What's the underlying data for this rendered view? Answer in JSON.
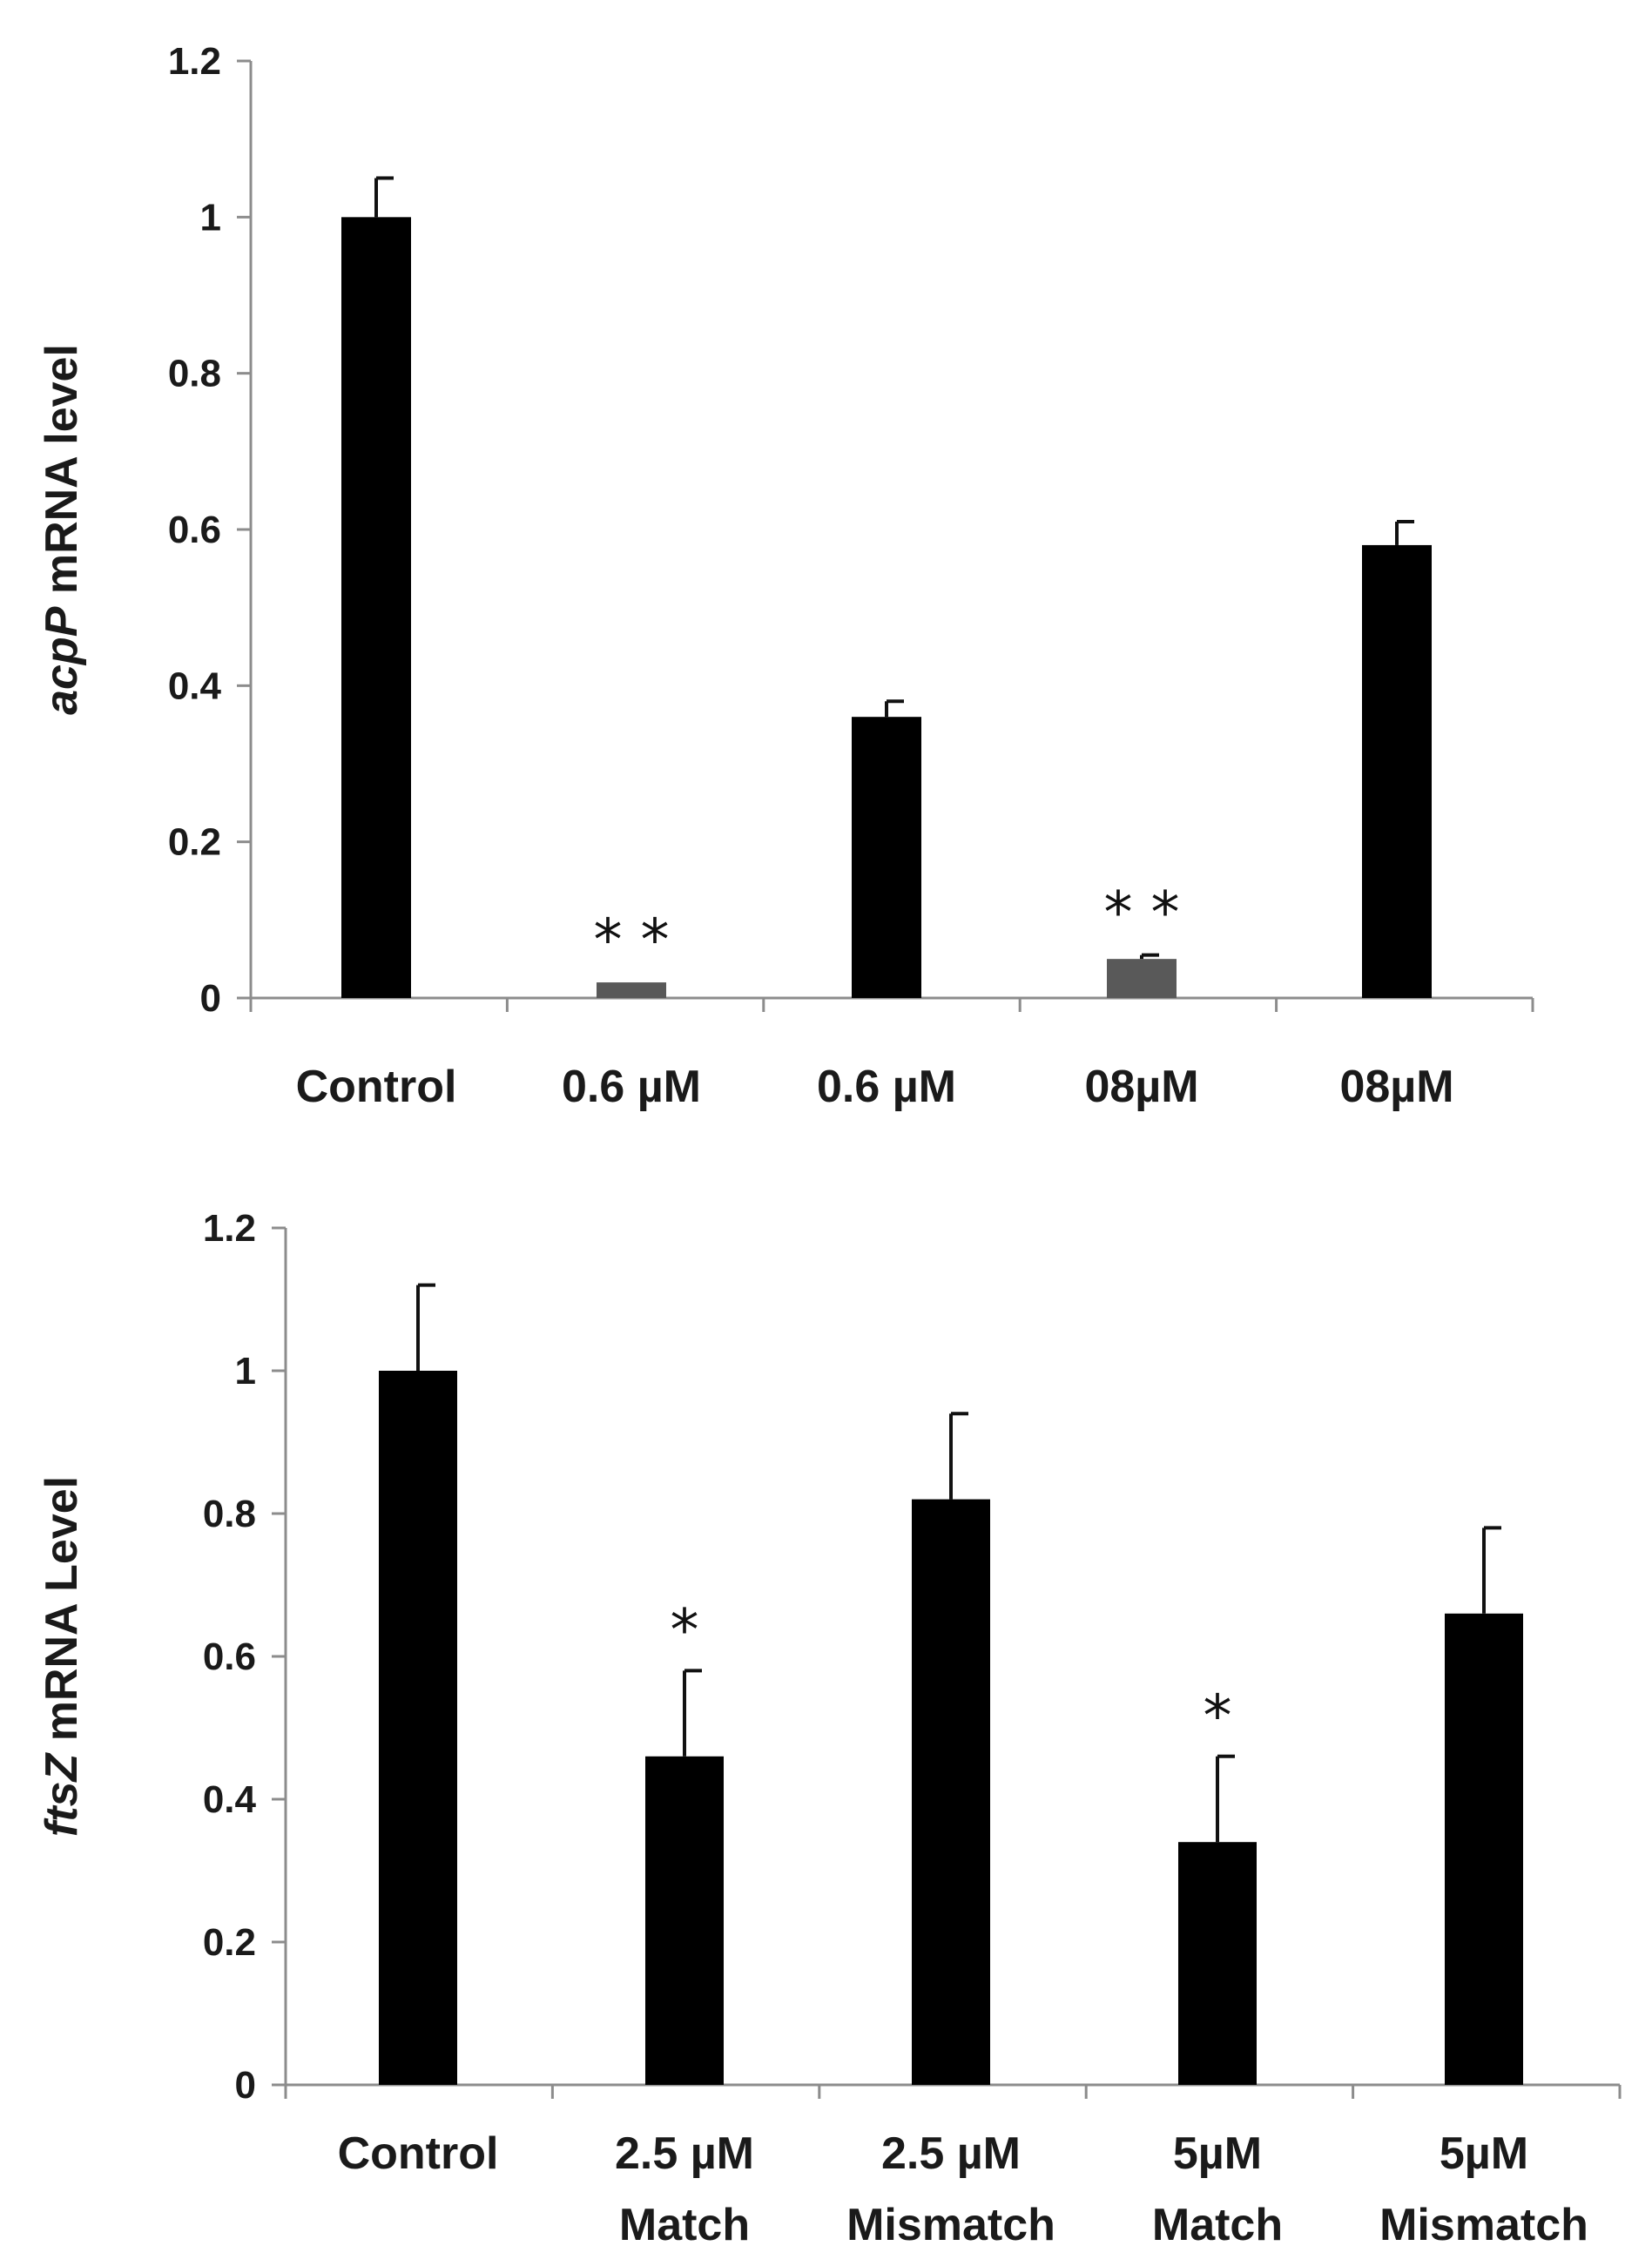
{
  "chart_data": [
    {
      "type": "bar",
      "title": "",
      "ylabel_italic": "acpP",
      "ylabel_rest": " mRNA level",
      "xlabel": "",
      "ylim": [
        0,
        1.2
      ],
      "yticks": [
        0,
        0.2,
        0.4,
        0.6,
        0.8,
        1,
        1.2
      ],
      "ytick_labels": [
        "0",
        "0.2",
        "0.4",
        "0.6",
        "0.8",
        "1",
        "1.2"
      ],
      "categories": [
        [
          "Control"
        ],
        [
          "0.6 µM"
        ],
        [
          "0.6 µM"
        ],
        [
          "08µM"
        ],
        [
          "08µM"
        ]
      ],
      "values": [
        1.0,
        0.02,
        0.36,
        0.05,
        0.58
      ],
      "errors": [
        0.05,
        0.0,
        0.02,
        0.005,
        0.03
      ],
      "bar_colors": [
        "#000000",
        "#595959",
        "#000000",
        "#595959",
        "#000000"
      ],
      "significance": [
        "",
        "**",
        "",
        "**",
        ""
      ],
      "legend": "none",
      "grid": false
    },
    {
      "type": "bar",
      "title": "",
      "ylabel_italic": "ftsZ",
      "ylabel_rest": " mRNA Level",
      "xlabel": "",
      "ylim": [
        0,
        1.2
      ],
      "yticks": [
        0,
        0.2,
        0.4,
        0.6,
        0.8,
        1,
        1.2
      ],
      "ytick_labels": [
        "0",
        "0.2",
        "0.4",
        "0.6",
        "0.8",
        "1",
        "1.2"
      ],
      "categories": [
        [
          "Control"
        ],
        [
          "2.5 µM",
          "Match"
        ],
        [
          "2.5 µM",
          "Mismatch"
        ],
        [
          "5µM",
          "Match"
        ],
        [
          "5µM",
          "Mismatch"
        ]
      ],
      "values": [
        1.0,
        0.46,
        0.82,
        0.34,
        0.66
      ],
      "errors": [
        0.12,
        0.12,
        0.12,
        0.12,
        0.12
      ],
      "bar_colors": [
        "#000000",
        "#000000",
        "#000000",
        "#000000",
        "#000000"
      ],
      "significance": [
        "",
        "*",
        "",
        "*",
        ""
      ],
      "legend": "none",
      "grid": false
    }
  ]
}
